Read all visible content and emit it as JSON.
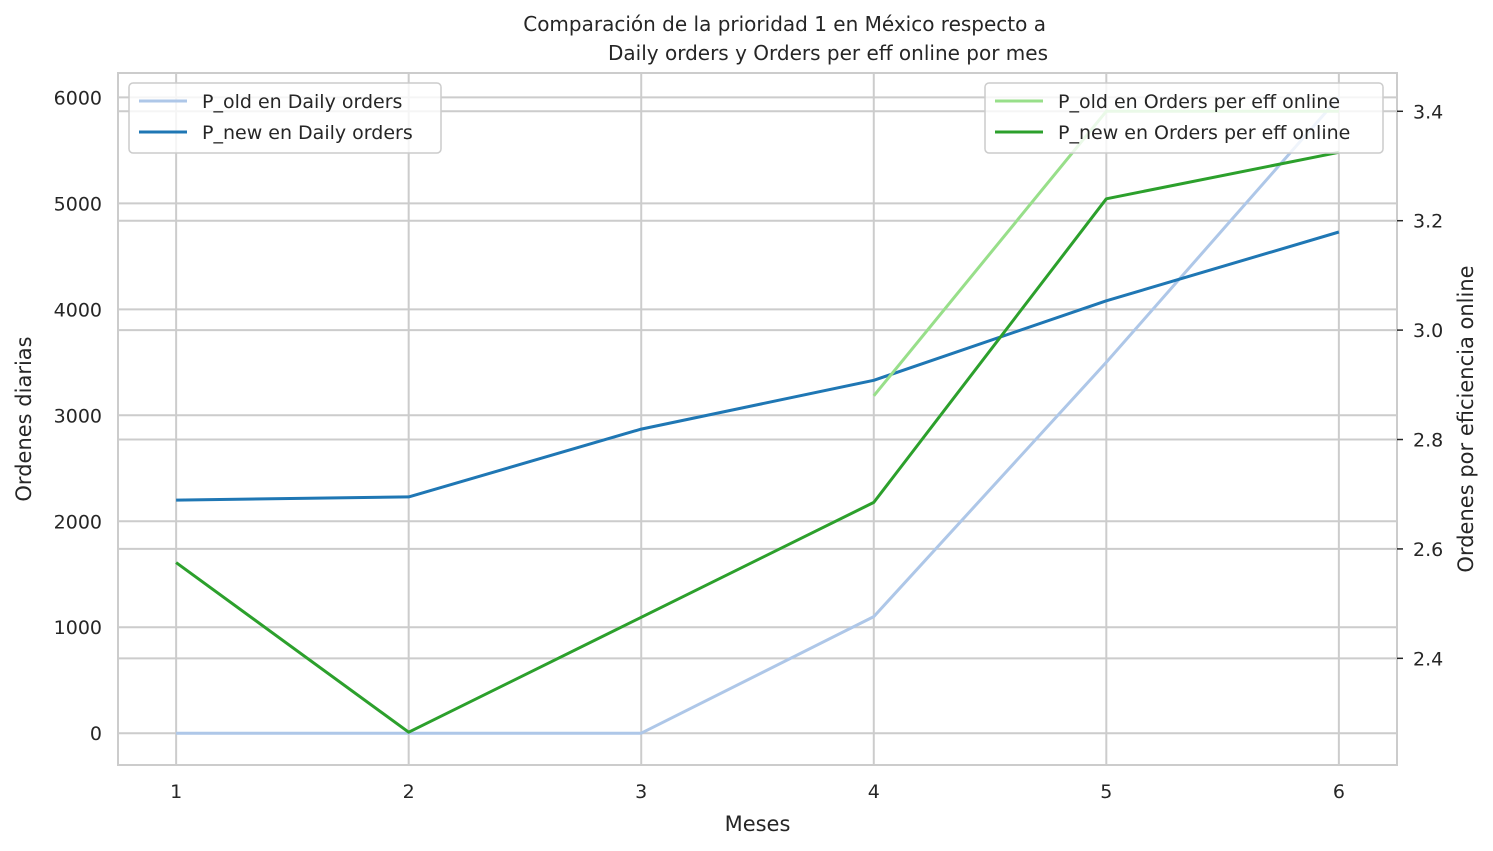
{
  "chart_data": {
    "type": "line",
    "title_line1": "Comparación de la prioridad 1 en México respecto a",
    "title_line2": "Daily orders y Orders per eff online por mes",
    "xlabel": "Meses",
    "ylabel_left": "Ordenes diarias",
    "ylabel_right": "Ordenes por eficiencia online",
    "x": [
      1,
      2,
      3,
      4,
      5,
      6
    ],
    "x_ticks": [
      "1",
      "2",
      "3",
      "4",
      "5",
      "6"
    ],
    "xlim": [
      0.75,
      6.25
    ],
    "y_left": {
      "lim": [
        -300,
        6230
      ],
      "ticks": [
        0,
        1000,
        2000,
        3000,
        4000,
        5000,
        6000
      ],
      "tick_labels": [
        "0",
        "1000",
        "2000",
        "3000",
        "4000",
        "5000",
        "6000"
      ]
    },
    "y_right": {
      "lim": [
        2.205,
        3.47
      ],
      "ticks": [
        2.4,
        2.6,
        2.8,
        3.0,
        3.2,
        3.4
      ],
      "tick_labels": [
        "2.4",
        "2.6",
        "2.8",
        "3.0",
        "3.2",
        "3.4"
      ]
    },
    "grid": true,
    "series": [
      {
        "name": "P_old en Daily orders",
        "axis": "left",
        "color": "#aec7e8",
        "x": [
          1,
          2,
          3,
          4,
          5,
          6
        ],
        "values": [
          0,
          0,
          0,
          1100,
          3500,
          6000
        ]
      },
      {
        "name": "P_new en Daily orders",
        "axis": "left",
        "color": "#1f77b4",
        "x": [
          1,
          2,
          3,
          4,
          5,
          6
        ],
        "values": [
          2200,
          2230,
          2870,
          3330,
          4080,
          4730
        ]
      },
      {
        "name": "P_old en Orders per eff online",
        "axis": "right",
        "color": "#98df8a",
        "x": [
          4,
          5,
          6
        ],
        "values": [
          2.88,
          3.4,
          3.4
        ]
      },
      {
        "name": "P_new en Orders per eff online",
        "axis": "right",
        "color": "#2ca02c",
        "x": [
          1,
          2,
          3,
          4,
          5,
          6
        ],
        "values": [
          2.575,
          2.265,
          2.475,
          2.685,
          3.24,
          3.325
        ]
      }
    ],
    "legend_left_placement": "upper-left",
    "legend_right_placement": "upper-right"
  }
}
